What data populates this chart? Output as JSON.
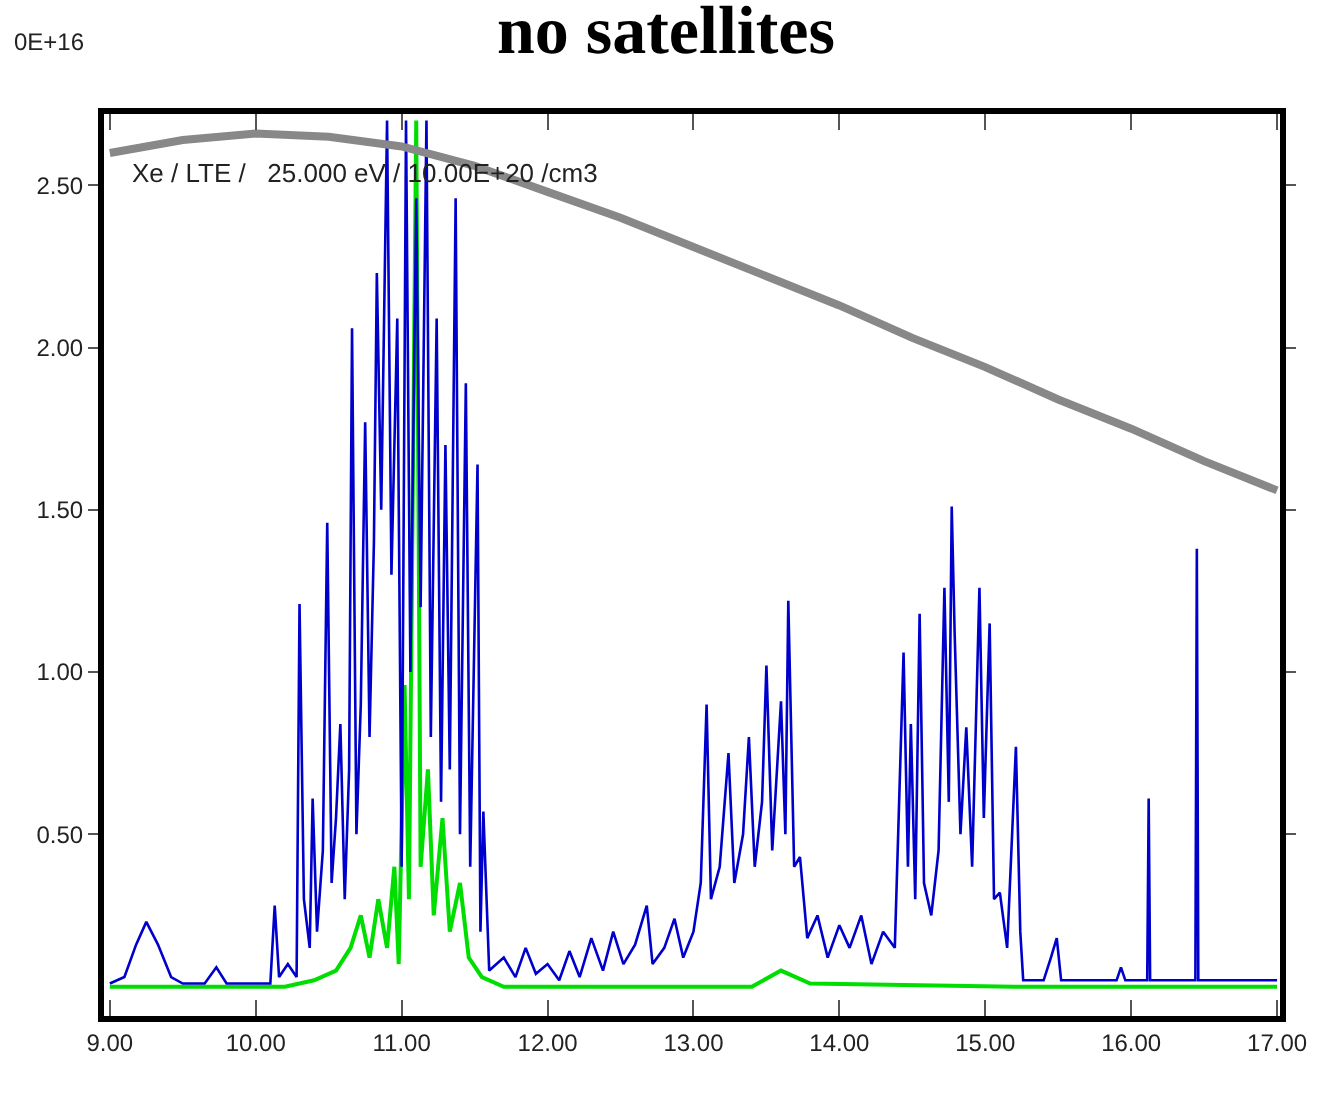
{
  "chart_data": {
    "type": "line",
    "title": "no satellites",
    "annotations": [
      "0E+16",
      "Xe / LTE /   25.000 eV / 10.00E+20 /cm3"
    ],
    "xlim": [
      8.96,
      17.02
    ],
    "ylim": [
      -0.06,
      2.72
    ],
    "xticks": [
      {
        "value": 9,
        "label": "9.00"
      },
      {
        "value": 10,
        "label": "10.00"
      },
      {
        "value": 11,
        "label": "11.00"
      },
      {
        "value": 12,
        "label": "12.00"
      },
      {
        "value": 13,
        "label": "13.00"
      },
      {
        "value": 14,
        "label": "14.00"
      },
      {
        "value": 15,
        "label": "15.00"
      },
      {
        "value": 16,
        "label": "16.00"
      },
      {
        "value": 17,
        "label": "17.00"
      }
    ],
    "yticks": [
      {
        "value": 0.5,
        "label": "0.50"
      },
      {
        "value": 1,
        "label": "1.00"
      },
      {
        "value": 1.5,
        "label": "1.50"
      },
      {
        "value": 2,
        "label": "2.00"
      },
      {
        "value": 2.5,
        "label": "2.50"
      }
    ],
    "marker": "none",
    "line_style": "solid",
    "series": [
      {
        "color": "#00dd00",
        "x": [
          9.0,
          10.2,
          10.4,
          10.55,
          10.65,
          10.72,
          10.78,
          10.84,
          10.9,
          10.95,
          10.98,
          11.02,
          11.05,
          11.1,
          11.13,
          11.18,
          11.22,
          11.28,
          11.33,
          11.4,
          11.46,
          11.55,
          11.7,
          13.4,
          13.6,
          13.8,
          15.2,
          17.0
        ],
        "values": [
          0.03,
          0.03,
          0.05,
          0.08,
          0.15,
          0.25,
          0.12,
          0.3,
          0.15,
          0.4,
          0.1,
          0.96,
          0.3,
          2.7,
          0.4,
          0.7,
          0.25,
          0.55,
          0.2,
          0.35,
          0.12,
          0.06,
          0.03,
          0.03,
          0.08,
          0.04,
          0.03,
          0.03
        ]
      },
      {
        "color": "#0000cc",
        "x": [
          9.0,
          9.1,
          9.18,
          9.25,
          9.33,
          9.42,
          9.5,
          9.65,
          9.73,
          9.8,
          10.1,
          10.13,
          10.16,
          10.22,
          10.28,
          10.3,
          10.33,
          10.37,
          10.39,
          10.42,
          10.46,
          10.49,
          10.52,
          10.55,
          10.58,
          10.61,
          10.64,
          10.66,
          10.69,
          10.72,
          10.75,
          10.78,
          10.81,
          10.83,
          10.86,
          10.9,
          10.93,
          10.97,
          11.0,
          11.03,
          11.06,
          11.1,
          11.13,
          11.17,
          11.2,
          11.24,
          11.27,
          11.3,
          11.33,
          11.37,
          11.4,
          11.44,
          11.47,
          11.52,
          11.54,
          11.56,
          11.6,
          11.7,
          11.78,
          11.85,
          11.92,
          12.0,
          12.08,
          12.15,
          12.22,
          12.3,
          12.38,
          12.45,
          12.52,
          12.6,
          12.68,
          12.72,
          12.8,
          12.87,
          12.93,
          13.0,
          13.05,
          13.09,
          13.12,
          13.18,
          13.24,
          13.28,
          13.34,
          13.38,
          13.42,
          13.47,
          13.5,
          13.54,
          13.6,
          13.63,
          13.65,
          13.69,
          13.73,
          13.78,
          13.85,
          13.92,
          14.0,
          14.07,
          14.15,
          14.22,
          14.3,
          14.38,
          14.44,
          14.47,
          14.49,
          14.52,
          14.55,
          14.58,
          14.63,
          14.68,
          14.72,
          14.75,
          14.77,
          14.79,
          14.83,
          14.87,
          14.91,
          14.96,
          14.99,
          15.03,
          15.06,
          15.1,
          15.15,
          15.21,
          15.24,
          15.26,
          15.4,
          15.45,
          15.49,
          15.52,
          15.9,
          15.93,
          15.96,
          16.11,
          16.12,
          16.13,
          16.44,
          16.45,
          16.46,
          17.0
        ],
        "values": [
          0.04,
          0.06,
          0.16,
          0.23,
          0.16,
          0.06,
          0.04,
          0.04,
          0.09,
          0.04,
          0.04,
          0.28,
          0.06,
          0.1,
          0.06,
          1.21,
          0.3,
          0.15,
          0.61,
          0.2,
          0.45,
          1.46,
          0.35,
          0.55,
          0.84,
          0.3,
          0.7,
          2.06,
          0.5,
          0.9,
          1.77,
          0.8,
          1.4,
          2.23,
          1.5,
          2.7,
          1.3,
          2.09,
          0.4,
          2.7,
          1.0,
          2.46,
          1.2,
          2.7,
          0.8,
          2.09,
          0.6,
          1.7,
          0.7,
          2.46,
          0.5,
          1.89,
          0.4,
          1.64,
          0.2,
          0.57,
          0.08,
          0.12,
          0.06,
          0.15,
          0.07,
          0.1,
          0.05,
          0.14,
          0.06,
          0.18,
          0.08,
          0.2,
          0.1,
          0.16,
          0.28,
          0.1,
          0.15,
          0.24,
          0.12,
          0.2,
          0.35,
          0.9,
          0.3,
          0.4,
          0.75,
          0.35,
          0.5,
          0.8,
          0.4,
          0.6,
          1.02,
          0.45,
          0.91,
          0.5,
          1.22,
          0.4,
          0.43,
          0.18,
          0.25,
          0.12,
          0.22,
          0.15,
          0.25,
          0.1,
          0.2,
          0.15,
          1.06,
          0.4,
          0.84,
          0.3,
          1.18,
          0.35,
          0.25,
          0.45,
          1.26,
          0.6,
          1.51,
          1.12,
          0.5,
          0.83,
          0.4,
          1.26,
          0.55,
          1.15,
          0.3,
          0.32,
          0.15,
          0.77,
          0.2,
          0.05,
          0.05,
          0.12,
          0.18,
          0.05,
          0.05,
          0.09,
          0.05,
          0.05,
          0.61,
          0.05,
          0.05,
          1.38,
          0.05,
          0.05
        ]
      },
      {
        "color": "#888888",
        "x": [
          9.0,
          9.5,
          10.0,
          10.5,
          11.0,
          11.5,
          12.0,
          12.5,
          13.0,
          13.5,
          14.0,
          14.5,
          15.0,
          15.5,
          16.0,
          16.5,
          17.0
        ],
        "values": [
          2.6,
          2.64,
          2.66,
          2.65,
          2.62,
          2.56,
          2.48,
          2.4,
          2.31,
          2.22,
          2.13,
          2.03,
          1.94,
          1.84,
          1.75,
          1.65,
          1.56
        ]
      }
    ]
  }
}
